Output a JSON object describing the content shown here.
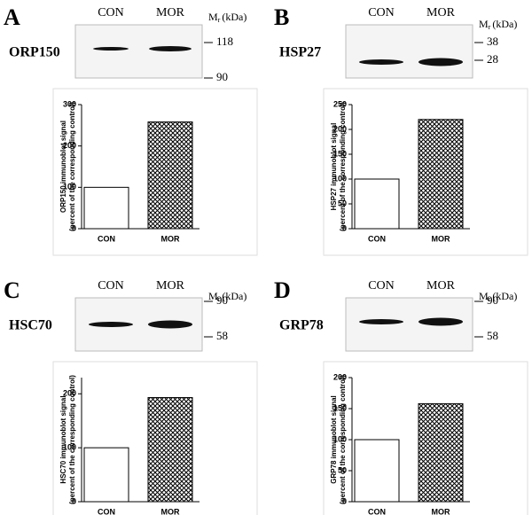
{
  "chart_data": [
    {
      "type": "bar",
      "categories": [
        "CON",
        "MOR"
      ],
      "values": [
        100,
        258
      ],
      "ylim": [
        0,
        300
      ],
      "yticks": [
        0,
        100,
        200,
        300
      ],
      "y_label": [
        "ORP150 immunoblot signal",
        "(percent of the corresponding control)"
      ],
      "color": "#000000",
      "hatch": [
        false,
        true
      ]
    },
    {
      "type": "bar",
      "categories": [
        "CON",
        "MOR"
      ],
      "values": [
        100,
        220
      ],
      "ylim": [
        0,
        250
      ],
      "yticks": [
        0,
        50,
        100,
        150,
        200,
        250
      ],
      "y_label": [
        "HSP27 immunoblot signal",
        "(percent of the corresponding control)"
      ],
      "color": "#000000",
      "hatch": [
        false,
        true
      ]
    },
    {
      "type": "bar",
      "categories": [
        "CON",
        "MOR"
      ],
      "values": [
        100,
        193
      ],
      "ylim": [
        0,
        230
      ],
      "yticks": [
        0,
        100,
        200
      ],
      "y_label": [
        "HSC70 immunoblot signal",
        "(percent of the corresponding control)"
      ],
      "color": "#000000",
      "hatch": [
        false,
        true
      ]
    },
    {
      "type": "bar",
      "categories": [
        "CON",
        "MOR"
      ],
      "values": [
        100,
        158
      ],
      "ylim": [
        0,
        200
      ],
      "yticks": [
        0,
        50,
        100,
        150,
        200
      ],
      "y_label": [
        "GRP78 immunoblot signal",
        "(percent of the corresponding control)"
      ],
      "color": "#000000",
      "hatch": [
        false,
        true
      ]
    }
  ],
  "blots": [
    {
      "letter": "A",
      "protein": "ORP150",
      "lanes": [
        "CON",
        "MOR"
      ],
      "mr": {
        "symbol": "M",
        "subscript": "r",
        "unit": "(kDa)"
      },
      "markers": [
        118,
        90
      ]
    },
    {
      "letter": "B",
      "protein": "HSP27",
      "lanes": [
        "CON",
        "MOR"
      ],
      "mr": {
        "symbol": "M",
        "subscript": "r",
        "unit": "(kDa)"
      },
      "markers": [
        38,
        28
      ]
    },
    {
      "letter": "C",
      "protein": "HSC70",
      "lanes": [
        "CON",
        "MOR"
      ],
      "mr": {
        "symbol": "M",
        "subscript": "r",
        "unit": "(kDa)"
      },
      "markers": [
        90,
        58
      ]
    },
    {
      "letter": "D",
      "protein": "GRP78",
      "lanes": [
        "CON",
        "MOR"
      ],
      "mr": {
        "symbol": "M",
        "subscript": "r",
        "unit": "(kDa)"
      },
      "markers": [
        90,
        58
      ]
    }
  ]
}
